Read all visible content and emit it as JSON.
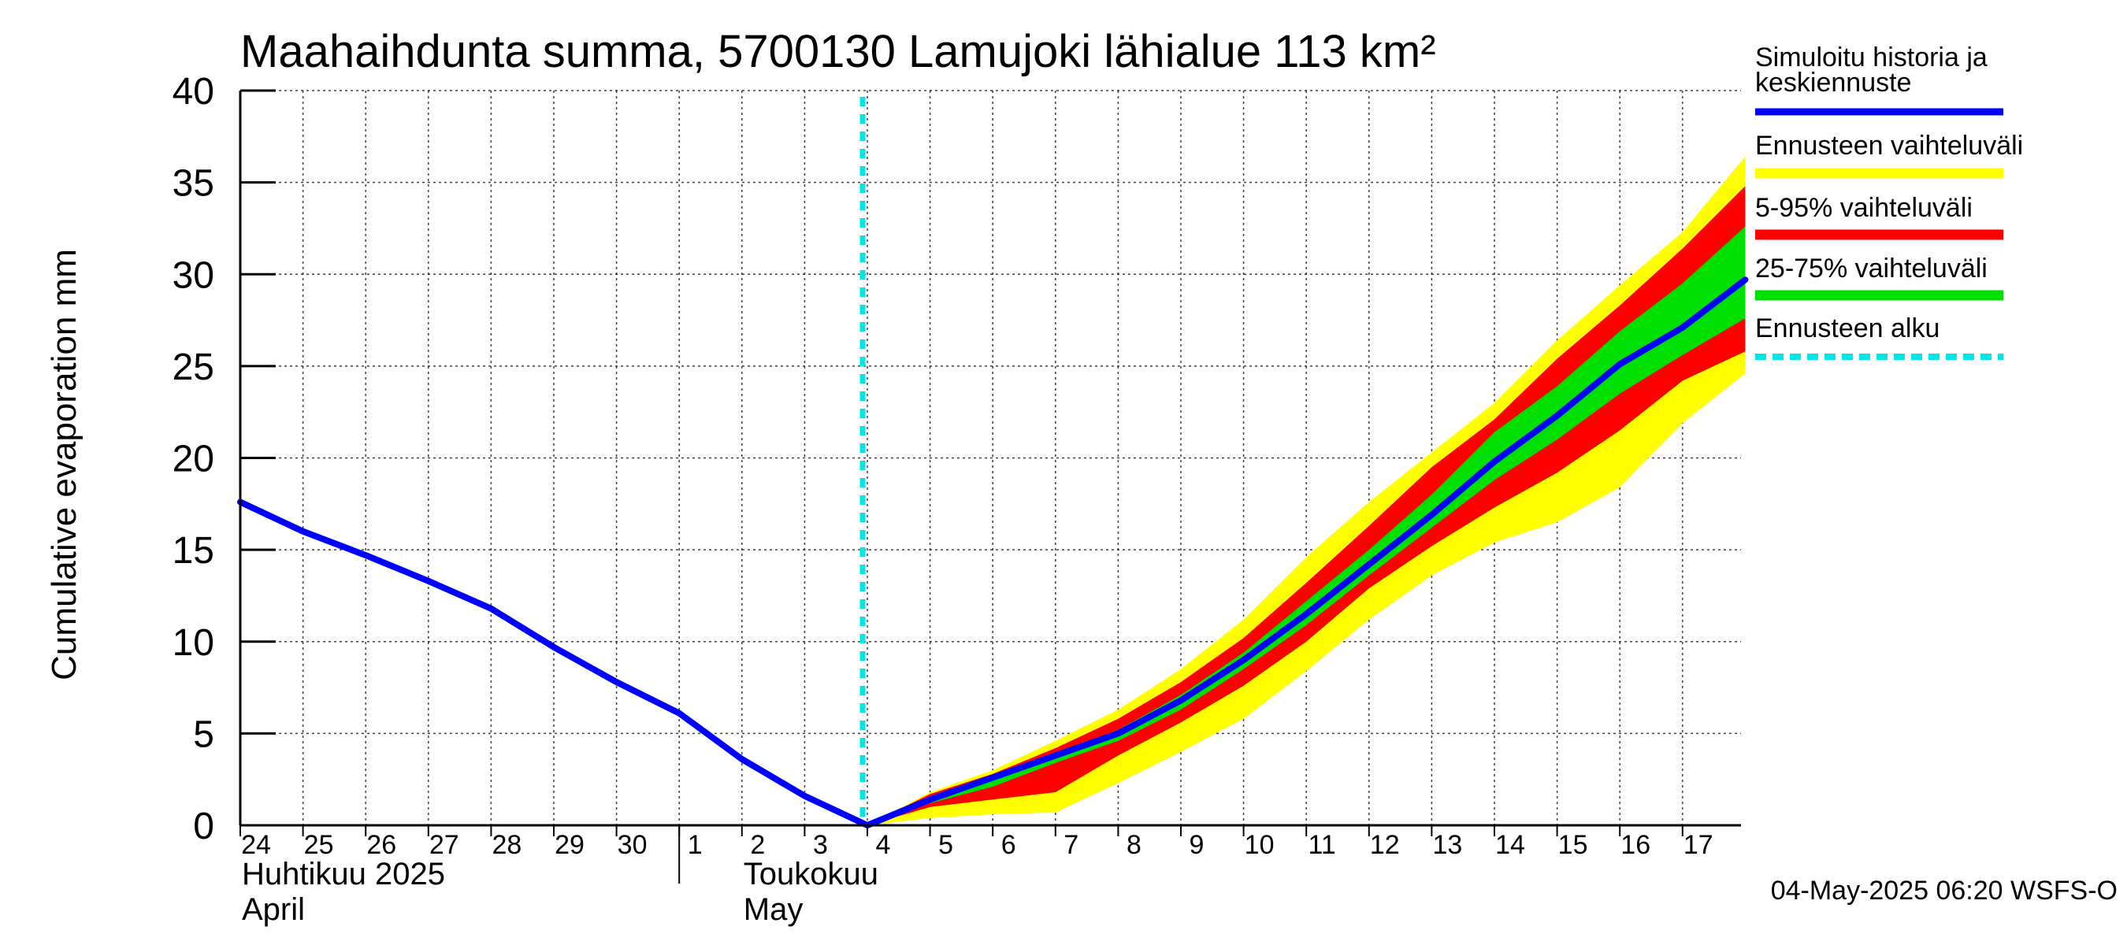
{
  "chart_data": {
    "type": "area",
    "title": "Maahaihdunta summa, 5700130 Lamujoki lähialue 113 km²",
    "ylabel": "Cumulative evaporation   mm",
    "ylim": [
      0,
      40
    ],
    "yticks": [
      0,
      5,
      10,
      15,
      20,
      25,
      30,
      35,
      40
    ],
    "x_days": [
      "24",
      "25",
      "26",
      "27",
      "28",
      "29",
      "30",
      "1",
      "2",
      "3",
      "4",
      "5",
      "6",
      "7",
      "8",
      "9",
      "10",
      "11",
      "12",
      "13",
      "14",
      "15",
      "16",
      "17"
    ],
    "month_labels": [
      {
        "line1": "Huhtikuu  2025",
        "line2": "April"
      },
      {
        "line1": "Toukokuu",
        "line2": "May"
      }
    ],
    "grid": true,
    "forecast_start": "2025-05-04",
    "legend_position": "right",
    "colors": {
      "history": "#0000ff",
      "range_full": "#ffff00",
      "range_5_95": "#ff0000",
      "range_25_75": "#00e000",
      "forecast_start": "#00e5e5"
    },
    "x": [
      "2025-04-24",
      "2025-04-25",
      "2025-04-26",
      "2025-04-27",
      "2025-04-28",
      "2025-04-29",
      "2025-04-30",
      "2025-05-01",
      "2025-05-02",
      "2025-05-03",
      "2025-05-04",
      "2025-05-05",
      "2025-05-06",
      "2025-05-07",
      "2025-05-08",
      "2025-05-09",
      "2025-05-10",
      "2025-05-11",
      "2025-05-12",
      "2025-05-13",
      "2025-05-14",
      "2025-05-15",
      "2025-05-16",
      "2025-05-17",
      "2025-05-18"
    ],
    "series": [
      {
        "name": "Simuloitu historia ja keskiennuste",
        "values": [
          17.6,
          16.0,
          14.7,
          13.3,
          11.8,
          9.7,
          7.8,
          6.1,
          3.6,
          1.6,
          0.0,
          1.4,
          2.6,
          3.8,
          5.0,
          6.8,
          9.0,
          11.5,
          14.2,
          16.9,
          19.8,
          22.3,
          25.1,
          27.1,
          29.7
        ]
      },
      {
        "name": "Ennusteen vaihteluväli",
        "lower": [
          null,
          null,
          null,
          null,
          null,
          null,
          null,
          null,
          null,
          null,
          0.0,
          0.4,
          0.6,
          0.7,
          2.3,
          4.0,
          5.8,
          8.4,
          11.2,
          13.6,
          15.4,
          16.5,
          18.4,
          21.9,
          24.6
        ],
        "upper": [
          null,
          null,
          null,
          null,
          null,
          null,
          null,
          null,
          null,
          null,
          0.0,
          1.8,
          3.0,
          4.6,
          6.3,
          8.5,
          11.2,
          14.6,
          17.6,
          20.3,
          23.0,
          26.4,
          29.4,
          32.3,
          36.4
        ]
      },
      {
        "name": "5-95% vaihteluväli",
        "lower": [
          null,
          null,
          null,
          null,
          null,
          null,
          null,
          null,
          null,
          null,
          0.0,
          1.0,
          1.4,
          1.8,
          3.8,
          5.6,
          7.6,
          10.0,
          12.9,
          15.2,
          17.3,
          19.2,
          21.5,
          24.2,
          25.8
        ],
        "upper": [
          null,
          null,
          null,
          null,
          null,
          null,
          null,
          null,
          null,
          null,
          0.0,
          1.7,
          2.8,
          4.2,
          5.8,
          7.8,
          10.2,
          13.2,
          16.3,
          19.5,
          22.1,
          25.4,
          28.3,
          31.4,
          34.8
        ]
      },
      {
        "name": "25-75% vaihteluväli",
        "lower": [
          null,
          null,
          null,
          null,
          null,
          null,
          null,
          null,
          null,
          null,
          0.0,
          1.2,
          2.1,
          3.4,
          4.6,
          6.3,
          8.5,
          10.9,
          13.6,
          16.2,
          18.8,
          21.0,
          23.5,
          25.6,
          27.6
        ],
        "upper": [
          null,
          null,
          null,
          null,
          null,
          null,
          null,
          null,
          null,
          null,
          0.0,
          1.5,
          2.6,
          3.8,
          5.2,
          7.1,
          9.4,
          12.2,
          15.0,
          18.0,
          21.4,
          23.9,
          26.9,
          29.5,
          32.6
        ]
      }
    ],
    "forecast_marker_name": "Ennusteen alku"
  },
  "footer": "04-May-2025 06:20 WSFS-O"
}
